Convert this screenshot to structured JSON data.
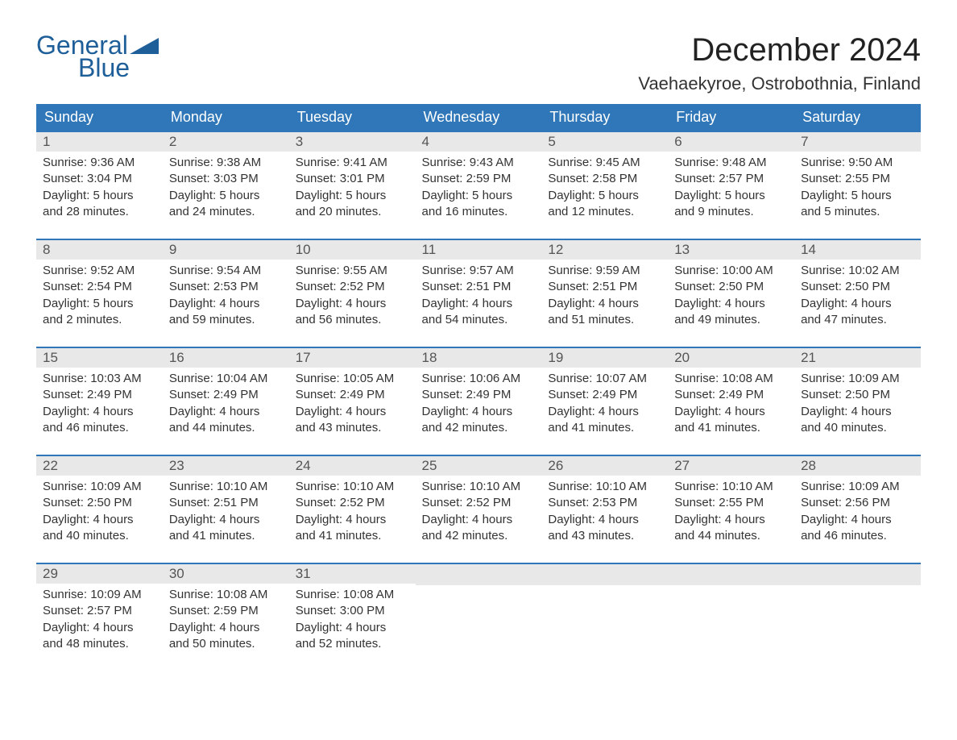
{
  "logo": {
    "part1": "General",
    "part2": "Blue",
    "flag_color": "#1f5f99"
  },
  "title": "December 2024",
  "location": "Vaehaekyroe, Ostrobothnia, Finland",
  "colors": {
    "header_bg": "#2f77b8",
    "header_text": "#ffffff",
    "row_border": "#2f77b8",
    "daynum_bg": "#e8e8e8",
    "text": "#333333"
  },
  "day_labels": [
    "Sunday",
    "Monday",
    "Tuesday",
    "Wednesday",
    "Thursday",
    "Friday",
    "Saturday"
  ],
  "weeks": [
    [
      {
        "n": "1",
        "sunrise": "9:36 AM",
        "sunset": "3:04 PM",
        "daylight": "5 hours and 28 minutes."
      },
      {
        "n": "2",
        "sunrise": "9:38 AM",
        "sunset": "3:03 PM",
        "daylight": "5 hours and 24 minutes."
      },
      {
        "n": "3",
        "sunrise": "9:41 AM",
        "sunset": "3:01 PM",
        "daylight": "5 hours and 20 minutes."
      },
      {
        "n": "4",
        "sunrise": "9:43 AM",
        "sunset": "2:59 PM",
        "daylight": "5 hours and 16 minutes."
      },
      {
        "n": "5",
        "sunrise": "9:45 AM",
        "sunset": "2:58 PM",
        "daylight": "5 hours and 12 minutes."
      },
      {
        "n": "6",
        "sunrise": "9:48 AM",
        "sunset": "2:57 PM",
        "daylight": "5 hours and 9 minutes."
      },
      {
        "n": "7",
        "sunrise": "9:50 AM",
        "sunset": "2:55 PM",
        "daylight": "5 hours and 5 minutes."
      }
    ],
    [
      {
        "n": "8",
        "sunrise": "9:52 AM",
        "sunset": "2:54 PM",
        "daylight": "5 hours and 2 minutes."
      },
      {
        "n": "9",
        "sunrise": "9:54 AM",
        "sunset": "2:53 PM",
        "daylight": "4 hours and 59 minutes."
      },
      {
        "n": "10",
        "sunrise": "9:55 AM",
        "sunset": "2:52 PM",
        "daylight": "4 hours and 56 minutes."
      },
      {
        "n": "11",
        "sunrise": "9:57 AM",
        "sunset": "2:51 PM",
        "daylight": "4 hours and 54 minutes."
      },
      {
        "n": "12",
        "sunrise": "9:59 AM",
        "sunset": "2:51 PM",
        "daylight": "4 hours and 51 minutes."
      },
      {
        "n": "13",
        "sunrise": "10:00 AM",
        "sunset": "2:50 PM",
        "daylight": "4 hours and 49 minutes."
      },
      {
        "n": "14",
        "sunrise": "10:02 AM",
        "sunset": "2:50 PM",
        "daylight": "4 hours and 47 minutes."
      }
    ],
    [
      {
        "n": "15",
        "sunrise": "10:03 AM",
        "sunset": "2:49 PM",
        "daylight": "4 hours and 46 minutes."
      },
      {
        "n": "16",
        "sunrise": "10:04 AM",
        "sunset": "2:49 PM",
        "daylight": "4 hours and 44 minutes."
      },
      {
        "n": "17",
        "sunrise": "10:05 AM",
        "sunset": "2:49 PM",
        "daylight": "4 hours and 43 minutes."
      },
      {
        "n": "18",
        "sunrise": "10:06 AM",
        "sunset": "2:49 PM",
        "daylight": "4 hours and 42 minutes."
      },
      {
        "n": "19",
        "sunrise": "10:07 AM",
        "sunset": "2:49 PM",
        "daylight": "4 hours and 41 minutes."
      },
      {
        "n": "20",
        "sunrise": "10:08 AM",
        "sunset": "2:49 PM",
        "daylight": "4 hours and 41 minutes."
      },
      {
        "n": "21",
        "sunrise": "10:09 AM",
        "sunset": "2:50 PM",
        "daylight": "4 hours and 40 minutes."
      }
    ],
    [
      {
        "n": "22",
        "sunrise": "10:09 AM",
        "sunset": "2:50 PM",
        "daylight": "4 hours and 40 minutes."
      },
      {
        "n": "23",
        "sunrise": "10:10 AM",
        "sunset": "2:51 PM",
        "daylight": "4 hours and 41 minutes."
      },
      {
        "n": "24",
        "sunrise": "10:10 AM",
        "sunset": "2:52 PM",
        "daylight": "4 hours and 41 minutes."
      },
      {
        "n": "25",
        "sunrise": "10:10 AM",
        "sunset": "2:52 PM",
        "daylight": "4 hours and 42 minutes."
      },
      {
        "n": "26",
        "sunrise": "10:10 AM",
        "sunset": "2:53 PM",
        "daylight": "4 hours and 43 minutes."
      },
      {
        "n": "27",
        "sunrise": "10:10 AM",
        "sunset": "2:55 PM",
        "daylight": "4 hours and 44 minutes."
      },
      {
        "n": "28",
        "sunrise": "10:09 AM",
        "sunset": "2:56 PM",
        "daylight": "4 hours and 46 minutes."
      }
    ],
    [
      {
        "n": "29",
        "sunrise": "10:09 AM",
        "sunset": "2:57 PM",
        "daylight": "4 hours and 48 minutes."
      },
      {
        "n": "30",
        "sunrise": "10:08 AM",
        "sunset": "2:59 PM",
        "daylight": "4 hours and 50 minutes."
      },
      {
        "n": "31",
        "sunrise": "10:08 AM",
        "sunset": "3:00 PM",
        "daylight": "4 hours and 52 minutes."
      },
      null,
      null,
      null,
      null
    ]
  ],
  "labels": {
    "sunrise": "Sunrise: ",
    "sunset": "Sunset: ",
    "daylight": "Daylight: "
  }
}
